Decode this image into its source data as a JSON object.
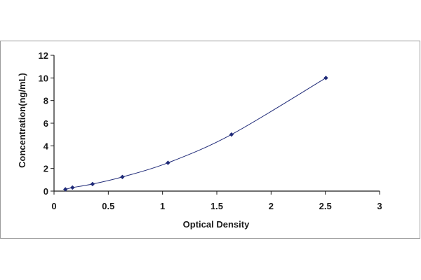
{
  "chart_data": {
    "type": "scatter",
    "title": "",
    "xlabel": "Optical Density",
    "ylabel": "Concentration(ng/mL)",
    "xlim": [
      0,
      3
    ],
    "ylim": [
      0,
      12
    ],
    "x_ticks": [
      0,
      0.5,
      1,
      1.5,
      2,
      2.5,
      3
    ],
    "x_tick_labels": [
      "0",
      "0.5",
      "1",
      "1.5",
      "2",
      "2.5",
      "3"
    ],
    "y_ticks": [
      0,
      2,
      4,
      6,
      8,
      10,
      12
    ],
    "y_tick_labels": [
      "0",
      "2",
      "4",
      "6",
      "8",
      "10",
      "12"
    ],
    "grid": false,
    "legend": "none",
    "series": [
      {
        "x": [
          0.105,
          0.17,
          0.355,
          0.63,
          1.05,
          1.635,
          2.505
        ],
        "y": [
          0.156,
          0.312,
          0.625,
          1.25,
          2.5,
          5,
          10
        ],
        "marker": "diamond",
        "fit_line": true
      }
    ],
    "colors": {
      "marker": "#1f2a78",
      "line": "#1f2a78",
      "axis": "#1a1a1a"
    }
  }
}
